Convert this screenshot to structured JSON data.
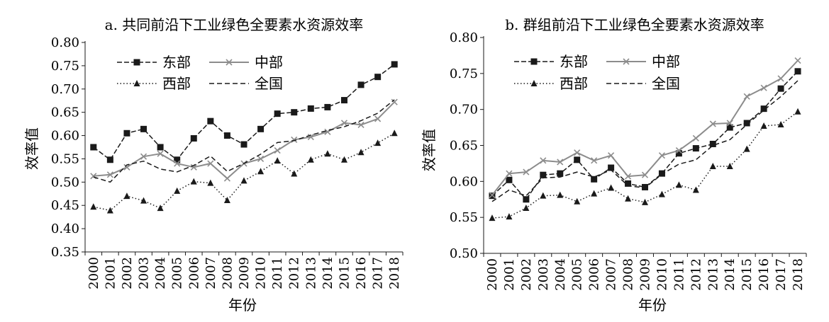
{
  "chart_data": [
    {
      "type": "line",
      "title": "a. 共同前沿下工业绿色全要素水资源效率",
      "xlabel": "年份",
      "ylabel": "效率值",
      "ylim": [
        0.35,
        0.8
      ],
      "yticks": [
        "0.35",
        "0.40",
        "0.45",
        "0.50",
        "0.55",
        "0.60",
        "0.65",
        "0.70",
        "0.75",
        "0.80"
      ],
      "categories": [
        "2000",
        "2001",
        "2002",
        "2003",
        "2004",
        "2005",
        "2006",
        "2007",
        "2008",
        "2009",
        "2010",
        "2011",
        "2012",
        "2013",
        "2014",
        "2015",
        "2016",
        "2017",
        "2018"
      ],
      "legend_position": "top-left",
      "series": [
        {
          "name": "东部",
          "color": "#1a1a1a",
          "style": "dash-square",
          "values": [
            0.575,
            0.548,
            0.605,
            0.614,
            0.575,
            0.548,
            0.594,
            0.631,
            0.6,
            0.581,
            0.614,
            0.647,
            0.65,
            0.658,
            0.661,
            0.676,
            0.709,
            0.726,
            0.753
          ]
        },
        {
          "name": "中部",
          "color": "#8c8c8c",
          "style": "solid-x",
          "values": [
            0.513,
            0.516,
            0.532,
            0.555,
            0.561,
            0.54,
            0.532,
            0.54,
            0.508,
            0.54,
            0.55,
            0.568,
            0.591,
            0.597,
            0.608,
            0.627,
            0.623,
            0.636,
            0.672
          ]
        },
        {
          "name": "西部",
          "color": "#1a1a1a",
          "style": "dot-triangle",
          "values": [
            0.447,
            0.439,
            0.47,
            0.46,
            0.444,
            0.481,
            0.501,
            0.498,
            0.461,
            0.503,
            0.523,
            0.546,
            0.518,
            0.548,
            0.561,
            0.548,
            0.564,
            0.584,
            0.605
          ]
        },
        {
          "name": "全国",
          "color": "#1a1a1a",
          "style": "dash",
          "values": [
            0.511,
            0.5,
            0.537,
            0.545,
            0.528,
            0.522,
            0.536,
            0.556,
            0.523,
            0.54,
            0.56,
            0.585,
            0.589,
            0.601,
            0.611,
            0.619,
            0.632,
            0.648,
            0.677
          ]
        }
      ]
    },
    {
      "type": "line",
      "title": "b. 群组前沿下工业绿色全要素水资源效率",
      "xlabel": "年份",
      "ylabel": "效率值",
      "ylim": [
        0.5,
        0.8
      ],
      "yticks": [
        "0.50",
        "0.55",
        "0.60",
        "0.65",
        "0.70",
        "0.75",
        "0.80"
      ],
      "categories": [
        "2000",
        "2001",
        "2002",
        "2003",
        "2004",
        "2005",
        "2006",
        "2007",
        "2008",
        "2009",
        "2010",
        "2011",
        "2012",
        "2013",
        "2014",
        "2015",
        "2016",
        "2017",
        "2018"
      ],
      "legend_position": "top-left",
      "series": [
        {
          "name": "东部",
          "color": "#1a1a1a",
          "style": "dash-square",
          "values": [
            0.58,
            0.602,
            0.575,
            0.609,
            0.611,
            0.63,
            0.603,
            0.619,
            0.597,
            0.592,
            0.611,
            0.639,
            0.646,
            0.652,
            0.675,
            0.681,
            0.701,
            0.729,
            0.753
          ]
        },
        {
          "name": "中部",
          "color": "#8c8c8c",
          "style": "solid-x",
          "values": [
            0.581,
            0.611,
            0.613,
            0.629,
            0.627,
            0.64,
            0.629,
            0.636,
            0.607,
            0.609,
            0.636,
            0.643,
            0.66,
            0.68,
            0.681,
            0.718,
            0.73,
            0.743,
            0.768
          ]
        },
        {
          "name": "西部",
          "color": "#1a1a1a",
          "style": "dot-triangle",
          "values": [
            0.549,
            0.551,
            0.563,
            0.58,
            0.581,
            0.572,
            0.583,
            0.591,
            0.576,
            0.571,
            0.582,
            0.595,
            0.588,
            0.621,
            0.621,
            0.645,
            0.677,
            0.679,
            0.697
          ]
        },
        {
          "name": "全国",
          "color": "#1a1a1a",
          "style": "dash",
          "values": [
            0.572,
            0.588,
            0.58,
            0.605,
            0.606,
            0.613,
            0.606,
            0.616,
            0.594,
            0.591,
            0.61,
            0.624,
            0.63,
            0.65,
            0.658,
            0.679,
            0.699,
            0.718,
            0.74
          ]
        }
      ]
    }
  ]
}
